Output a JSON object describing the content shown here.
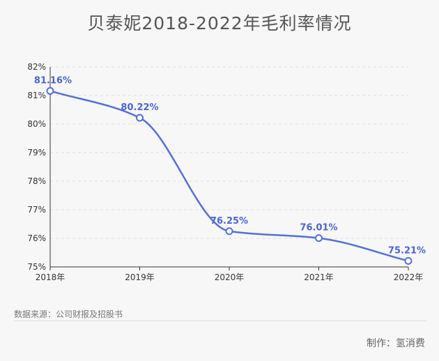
{
  "title": "贝泰妮2018-2022年毛利率情况",
  "source": "数据来源：公司财报及招股书",
  "credit": "制作：氢消费",
  "colors": {
    "line": "#5470d6",
    "label": "#4a66cf",
    "grid": "#dddddd"
  },
  "chart_data": {
    "type": "line",
    "title": "贝泰妮2018-2022年毛利率情况",
    "categories": [
      "2018年",
      "2019年",
      "2020年",
      "2021年",
      "2022年"
    ],
    "values": [
      81.16,
      80.22,
      76.25,
      76.01,
      75.21
    ],
    "data_labels": [
      "81.16%",
      "80.22%",
      "76.25%",
      "76.01%",
      "75.21%"
    ],
    "ylim": [
      75,
      82
    ],
    "yticks": [
      75,
      76,
      77,
      78,
      79,
      80,
      81,
      82
    ],
    "ytick_labels": [
      "75%",
      "76%",
      "77%",
      "78%",
      "79%",
      "80%",
      "81%",
      "82%"
    ],
    "smooth": true,
    "grid": true
  }
}
